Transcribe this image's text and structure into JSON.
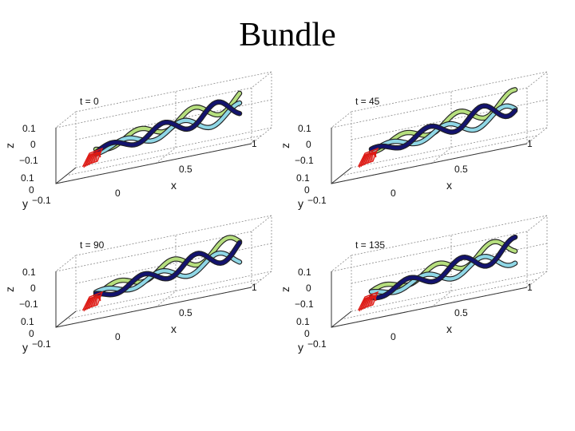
{
  "slide": {
    "title": "Bundle"
  },
  "panels": [
    {
      "time_label": "t = 0"
    },
    {
      "time_label": "t = 45"
    },
    {
      "time_label": "t = 90"
    },
    {
      "time_label": "t = 135"
    }
  ],
  "axes": {
    "z_label": "z",
    "z_ticks": [
      "0.1",
      "0",
      "−0.1"
    ],
    "y_label": "y",
    "y_ticks": [
      "0.1",
      "0",
      "−0.1"
    ],
    "x_label": "x",
    "x_ticks": [
      "0",
      "0.5",
      "1"
    ]
  },
  "colors": {
    "filament_dark": "#13136e",
    "filament_green": "#b6df7e",
    "filament_cyan": "#8fd7e6",
    "motor_red": "#dd1a14",
    "grid": "#8a8a8a"
  }
}
